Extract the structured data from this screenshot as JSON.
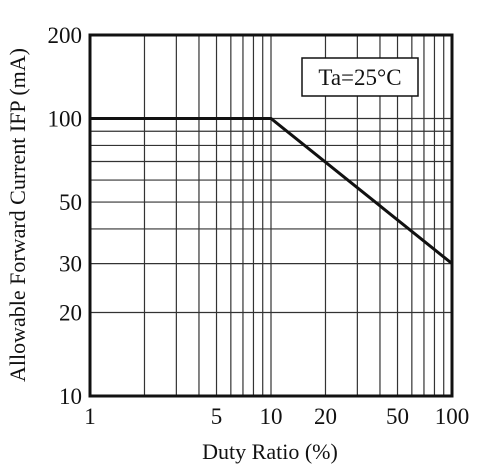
{
  "chart_data": {
    "type": "line",
    "title": "",
    "xlabel": "Duty Ratio (%)",
    "ylabel": "Allowable Forward Current IFP (mA)",
    "x_scale": "log",
    "y_scale": "log",
    "xlim": [
      1,
      100
    ],
    "ylim": [
      10,
      200
    ],
    "grid": true,
    "x_tick_labels": [
      {
        "value": 1,
        "label": "1"
      },
      {
        "value": 5,
        "label": "5"
      },
      {
        "value": 10,
        "label": "10"
      },
      {
        "value": 20,
        "label": "20"
      },
      {
        "value": 50,
        "label": "50"
      },
      {
        "value": 100,
        "label": "100"
      }
    ],
    "y_tick_labels": [
      {
        "value": 10,
        "label": "10"
      },
      {
        "value": 20,
        "label": "20"
      },
      {
        "value": 30,
        "label": "30"
      },
      {
        "value": 50,
        "label": "50"
      },
      {
        "value": 100,
        "label": "100"
      },
      {
        "value": 200,
        "label": "200"
      }
    ],
    "series": [
      {
        "x": [
          1,
          10,
          100
        ],
        "y": [
          100,
          100,
          30
        ]
      }
    ],
    "annotation": "Ta=25°C",
    "colors": {
      "line": "#111111",
      "grid": "#333333",
      "frame": "#111111"
    }
  }
}
